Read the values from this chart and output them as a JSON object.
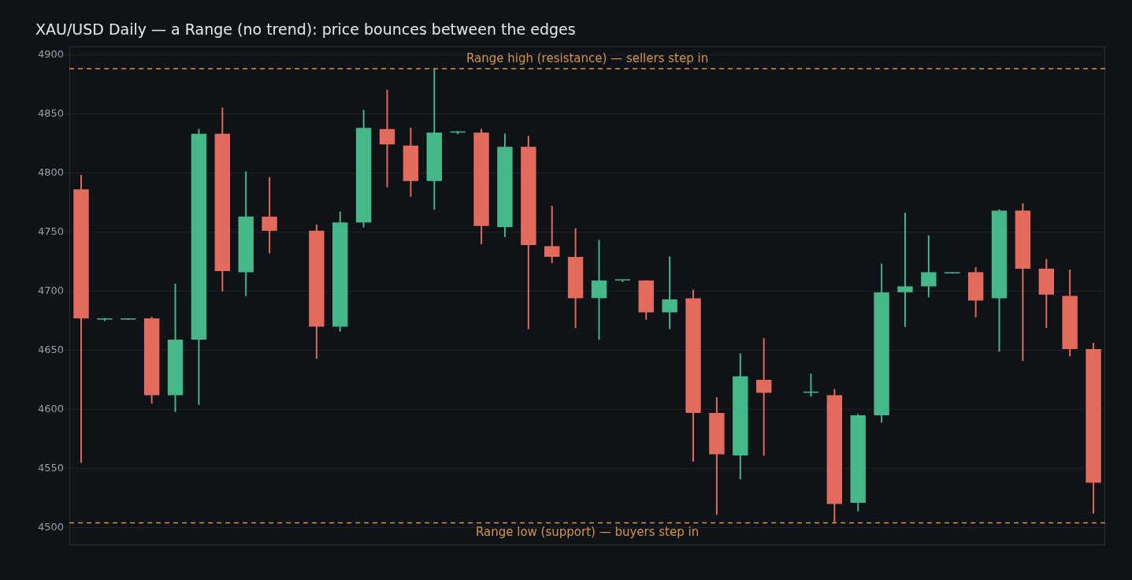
{
  "chart_data": {
    "type": "candlestick",
    "title": "XAU/USD Daily — a Range (no trend): price bounces between the edges",
    "categories": [
      null,
      null,
      null,
      null,
      null,
      null,
      null,
      null,
      null,
      null,
      null,
      null,
      null,
      null,
      null,
      null,
      null,
      null,
      null,
      null,
      null,
      null,
      null,
      null,
      null,
      null,
      null,
      null,
      null,
      null,
      null,
      null,
      null,
      null,
      null,
      null,
      null,
      null,
      null,
      null,
      null,
      null,
      null,
      null
    ],
    "ohlc": [
      [
        4786,
        4798,
        4555,
        4677
      ],
      [
        4676,
        4677,
        4675,
        4676
      ],
      [
        4676,
        4676,
        4676,
        4676
      ],
      [
        4677,
        4678,
        4605,
        4612
      ],
      [
        4612,
        4706,
        4598,
        4659
      ],
      [
        4659,
        4837,
        4604,
        4833
      ],
      [
        4833,
        4855,
        4700,
        4717
      ],
      [
        4716,
        4801,
        4696,
        4763
      ],
      [
        4763,
        4796,
        4732,
        4751
      ],
      null,
      [
        4751,
        4756,
        4643,
        4670
      ],
      [
        4670,
        4767,
        4666,
        4758
      ],
      [
        4758,
        4853,
        4754,
        4838
      ],
      [
        4837,
        4870,
        4788,
        4824
      ],
      [
        4823,
        4838,
        4780,
        4793
      ],
      [
        4793,
        4888,
        4769,
        4834
      ],
      [
        4834,
        4835,
        4833,
        4834
      ],
      [
        4834,
        4837,
        4740,
        4755
      ],
      [
        4754,
        4833,
        4746,
        4822
      ],
      [
        4822,
        4831,
        4668,
        4739
      ],
      [
        4738,
        4772,
        4724,
        4729
      ],
      [
        4729,
        4753,
        4669,
        4694
      ],
      [
        4694,
        4743,
        4659,
        4709
      ],
      [
        4709,
        4709,
        4708,
        4709
      ],
      [
        4709,
        4709,
        4676,
        4682
      ],
      [
        4682,
        4729,
        4668,
        4693
      ],
      [
        4694,
        4701,
        4556,
        4597
      ],
      [
        4597,
        4610,
        4511,
        4562
      ],
      [
        4561,
        4647,
        4541,
        4628
      ],
      [
        4625,
        4660,
        4561,
        4614
      ],
      null,
      [
        4614,
        4630,
        4611,
        4614
      ],
      [
        4612,
        4617,
        4504,
        4520
      ],
      [
        4521,
        4596,
        4514,
        4595
      ],
      [
        4595,
        4723,
        4589,
        4699
      ],
      [
        4699,
        4766,
        4670,
        4704
      ],
      [
        4704,
        4747,
        4695,
        4716
      ],
      [
        4715,
        4715,
        4715,
        4715
      ],
      [
        4716,
        4720,
        4678,
        4692
      ],
      [
        4694,
        4769,
        4649,
        4768
      ],
      [
        4768,
        4774,
        4641,
        4719
      ],
      [
        4719,
        4727,
        4669,
        4697
      ],
      [
        4696,
        4718,
        4645,
        4651
      ],
      [
        4651,
        4656,
        4512,
        4538
      ]
    ],
    "colors": [
      "#e36b5e",
      "#45b789",
      "#45b789",
      "#e36b5e",
      "#45b789",
      "#45b789",
      "#e36b5e",
      "#45b789",
      "#e36b5e",
      null,
      "#e36b5e",
      "#45b789",
      "#45b789",
      "#e36b5e",
      "#e36b5e",
      "#45b789",
      "#45b789",
      "#e36b5e",
      "#45b789",
      "#e36b5e",
      "#e36b5e",
      "#e36b5e",
      "#45b789",
      "#45b789",
      "#e36b5e",
      "#45b789",
      "#e36b5e",
      "#e36b5e",
      "#45b789",
      "#e36b5e",
      null,
      "#45b789",
      "#e36b5e",
      "#45b789",
      "#45b789",
      "#45b789",
      "#45b789",
      "#45b789",
      "#e36b5e",
      "#45b789",
      "#e36b5e",
      "#e36b5e",
      "#e36b5e",
      "#e36b5e"
    ],
    "ylim": [
      4485,
      4907
    ],
    "yticks": [
      4500,
      4550,
      4600,
      4650,
      4700,
      4750,
      4800,
      4850,
      4900
    ],
    "grid": "y",
    "legend": false,
    "tick_labels": "y",
    "ref_lines": [
      {
        "axis": "y",
        "value": 4888,
        "label": "Range high (resistance) — sellers step in",
        "color": "#d4954a",
        "line_style": "dashed"
      },
      {
        "axis": "y",
        "value": 4504,
        "label": "Range low (support) — buyers step in",
        "color": "#d4954a",
        "line_style": "dashed"
      }
    ]
  }
}
